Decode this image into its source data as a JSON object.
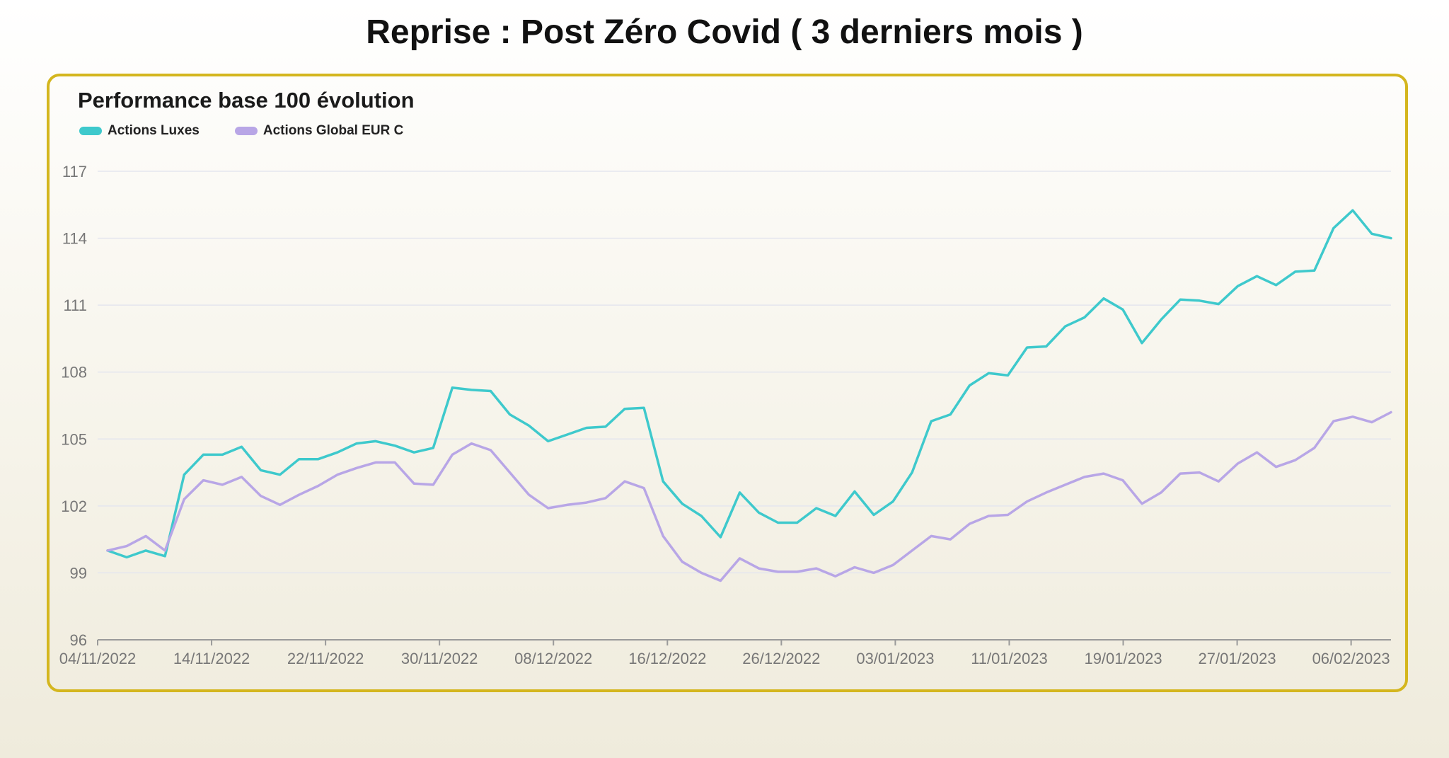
{
  "page": {
    "title": "Reprise : Post Zéro Covid ( 3 derniers mois )"
  },
  "chart_data": {
    "type": "line",
    "title": "Performance base 100 évolution",
    "xlabel": "",
    "ylabel": "",
    "ylim": [
      96,
      117
    ],
    "yticks": [
      96,
      99,
      102,
      105,
      108,
      111,
      114,
      117
    ],
    "xticks": [
      "04/11/2022",
      "14/11/2022",
      "22/11/2022",
      "30/11/2022",
      "08/12/2022",
      "16/12/2022",
      "26/12/2022",
      "03/01/2023",
      "11/01/2023",
      "19/01/2023",
      "27/01/2023",
      "06/02/2023"
    ],
    "grid": true,
    "legend_position": "top-left",
    "points_count": 68,
    "series": [
      {
        "name": "Actions Luxes",
        "color": "#3ec9cc",
        "values": [
          100.0,
          99.7,
          100.0,
          99.75,
          103.4,
          104.3,
          104.3,
          104.65,
          103.6,
          103.4,
          104.1,
          104.1,
          104.4,
          104.8,
          104.9,
          104.7,
          104.4,
          104.6,
          107.3,
          107.2,
          107.15,
          106.1,
          105.6,
          104.9,
          105.2,
          105.5,
          105.55,
          106.35,
          106.4,
          103.1,
          102.1,
          101.55,
          100.6,
          102.6,
          101.7,
          101.25,
          101.25,
          101.9,
          101.55,
          102.65,
          101.6,
          102.2,
          103.5,
          105.8,
          106.1,
          107.4,
          107.95,
          107.85,
          109.1,
          109.15,
          110.05,
          110.45,
          111.3,
          110.8,
          109.3,
          110.35,
          111.25,
          111.2,
          111.05,
          111.85,
          112.3,
          111.9,
          112.5,
          112.55,
          114.45,
          115.25,
          114.2,
          114.0
        ]
      },
      {
        "name": "Actions Global EUR C",
        "color": "#b8a6e6",
        "values": [
          100.0,
          100.2,
          100.65,
          100.0,
          102.3,
          103.15,
          102.95,
          103.3,
          102.45,
          102.05,
          102.5,
          102.9,
          103.4,
          103.7,
          103.95,
          103.95,
          103.0,
          102.95,
          104.3,
          104.8,
          104.5,
          103.5,
          102.5,
          101.9,
          102.05,
          102.15,
          102.35,
          103.1,
          102.8,
          100.65,
          99.5,
          99.0,
          98.65,
          99.65,
          99.2,
          99.05,
          99.05,
          99.2,
          98.85,
          99.25,
          99.0,
          99.35,
          100.0,
          100.65,
          100.5,
          101.2,
          101.55,
          101.6,
          102.2,
          102.6,
          102.95,
          103.3,
          103.45,
          103.15,
          102.1,
          102.6,
          103.45,
          103.5,
          103.1,
          103.9,
          104.4,
          103.75,
          104.05,
          104.6,
          105.8,
          106.0,
          105.75,
          106.2
        ]
      }
    ]
  }
}
